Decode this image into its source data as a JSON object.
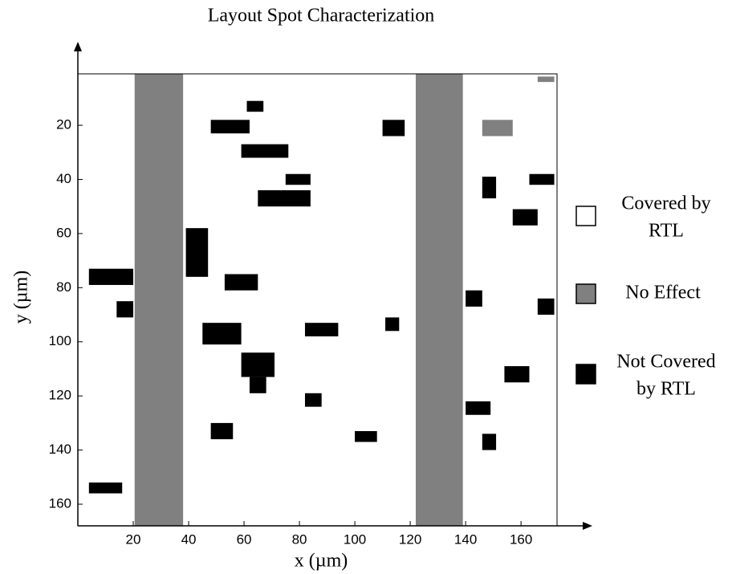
{
  "chart_data": {
    "type": "heatmap",
    "title": "Layout Spot Characterization",
    "xlabel": "x (µm)",
    "ylabel": "y (µm)",
    "xlim": [
      0,
      173
    ],
    "ylim": [
      1,
      168
    ],
    "y_inverted": true,
    "xticks": [
      20,
      40,
      60,
      80,
      100,
      120,
      140,
      160
    ],
    "yticks": [
      20,
      40,
      60,
      80,
      100,
      120,
      140,
      160
    ],
    "background": "#ffffff",
    "series": [
      {
        "name": [
          "Covered by",
          "RTL"
        ],
        "color": "#ffffff",
        "regions": []
      },
      {
        "name": [
          "No Effect"
        ],
        "color": "#808080",
        "regions": [
          [
            20.5,
            38,
            1,
            168
          ],
          [
            122,
            139,
            1,
            168
          ],
          [
            146,
            157,
            18,
            24
          ],
          [
            166,
            172,
            2,
            4
          ]
        ]
      },
      {
        "name": [
          "Not Covered",
          "by RTL"
        ],
        "color": "#000000",
        "regions": [
          [
            48,
            62,
            18,
            23
          ],
          [
            61,
            67,
            11,
            15
          ],
          [
            59,
            76,
            27,
            32
          ],
          [
            65,
            84,
            44,
            50
          ],
          [
            75,
            84,
            38,
            42
          ],
          [
            39,
            47,
            58,
            76
          ],
          [
            53,
            65,
            75,
            81
          ],
          [
            59,
            71,
            104,
            113
          ],
          [
            62,
            68,
            113,
            119
          ],
          [
            4,
            20,
            73,
            79
          ],
          [
            14,
            20,
            85,
            91
          ],
          [
            110,
            118,
            18,
            24
          ],
          [
            146,
            151,
            39,
            47
          ],
          [
            157,
            166,
            51,
            57
          ],
          [
            163,
            172,
            38,
            42
          ],
          [
            154,
            163,
            109,
            115
          ],
          [
            166,
            172,
            84,
            90
          ],
          [
            140,
            146,
            81,
            87
          ],
          [
            111,
            116,
            91,
            96
          ],
          [
            82,
            94,
            93,
            98
          ],
          [
            45,
            59,
            93,
            101
          ],
          [
            82,
            88,
            119,
            124
          ],
          [
            48,
            56,
            130,
            136
          ],
          [
            100,
            108,
            133,
            137
          ],
          [
            146,
            151,
            134,
            140
          ],
          [
            4,
            16,
            152,
            156
          ],
          [
            140,
            149,
            122,
            127
          ]
        ]
      }
    ]
  }
}
